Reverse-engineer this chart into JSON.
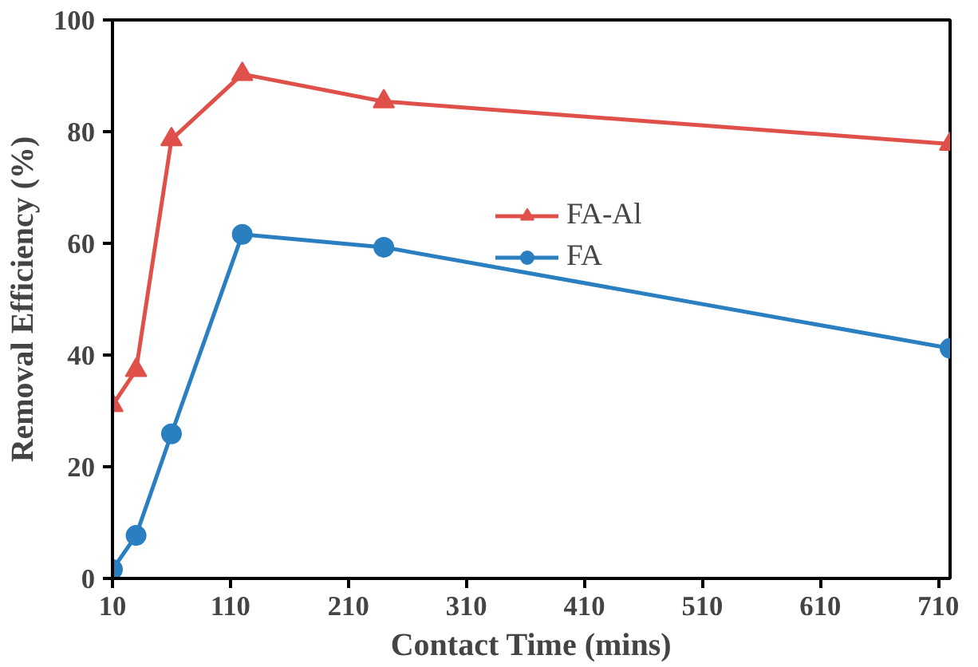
{
  "chart_data": {
    "type": "line",
    "xlabel": "Contact Time (mins)",
    "ylabel": "Removal Efficiency (%)",
    "x": [
      10,
      30,
      60,
      120,
      240,
      720
    ],
    "series": [
      {
        "name": "FA-Al",
        "color": "#e0504a",
        "marker": "triangle",
        "values": [
          31.0,
          37.3,
          78.6,
          90.3,
          85.4,
          77.8
        ]
      },
      {
        "name": "FA",
        "color": "#2a7fc1",
        "marker": "circle",
        "values": [
          1.6,
          7.7,
          25.9,
          61.6,
          59.3,
          41.2
        ]
      }
    ],
    "xlim": [
      10,
      720
    ],
    "xticks": [
      10,
      110,
      210,
      310,
      410,
      510,
      610,
      710
    ],
    "ylim": [
      0,
      100
    ],
    "yticks": [
      0,
      20,
      40,
      60,
      80,
      100
    ],
    "grid": false,
    "legend": "right",
    "line_style": "solid"
  }
}
